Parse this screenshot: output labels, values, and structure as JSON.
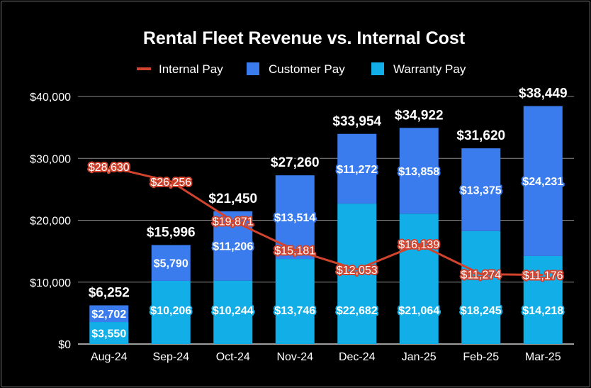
{
  "chart_data": {
    "type": "bar",
    "title": "Rental Fleet Revenue vs. Internal Cost",
    "xlabel": "",
    "ylabel": "",
    "categories": [
      "Aug-24",
      "Sep-24",
      "Oct-24",
      "Nov-24",
      "Dec-24",
      "Jan-25",
      "Feb-25",
      "Mar-25"
    ],
    "ylim": [
      0,
      40000
    ],
    "y_ticks": [
      0,
      10000,
      20000,
      30000,
      40000
    ],
    "y_tick_labels": [
      "$0",
      "$10,000",
      "$20,000",
      "$30,000",
      "$40,000"
    ],
    "stacked": true,
    "legend_position": "top",
    "grid": true,
    "series": [
      {
        "name": "Warranty Pay",
        "type": "bar",
        "color": "#12aee7",
        "values": [
          3550,
          10206,
          10244,
          13746,
          22682,
          21064,
          18245,
          14218
        ],
        "labels": [
          "$3,550",
          "$10,206",
          "$10,244",
          "$13,746",
          "$22,682",
          "$21,064",
          "$18,245",
          "$14,218"
        ]
      },
      {
        "name": "Customer Pay",
        "type": "bar",
        "color": "#3a7cee",
        "values": [
          2702,
          5790,
          11206,
          13514,
          11272,
          13858,
          13375,
          24231
        ],
        "labels": [
          "$2,702",
          "$5,790",
          "$11,206",
          "$13,514",
          "$11,272",
          "$13,858",
          "$13,375",
          "$24,231"
        ]
      },
      {
        "name": "Internal Pay",
        "type": "line",
        "color": "#d2432e",
        "values": [
          28630,
          26256,
          19871,
          15181,
          12053,
          16139,
          11274,
          11176
        ],
        "labels": [
          "$28,630",
          "$26,256",
          "$19,871",
          "$15,181",
          "$12,053",
          "$16,139",
          "$11,274",
          "$11,176"
        ]
      }
    ],
    "totals": [
      6252,
      15996,
      21450,
      27260,
      33954,
      34922,
      31620,
      38449
    ],
    "total_labels": [
      "$6,252",
      "$15,996",
      "$21,450",
      "$27,260",
      "$33,954",
      "$34,922",
      "$31,620",
      "$38,449"
    ],
    "legend": [
      "Internal Pay",
      "Customer Pay",
      "Warranty Pay"
    ]
  }
}
